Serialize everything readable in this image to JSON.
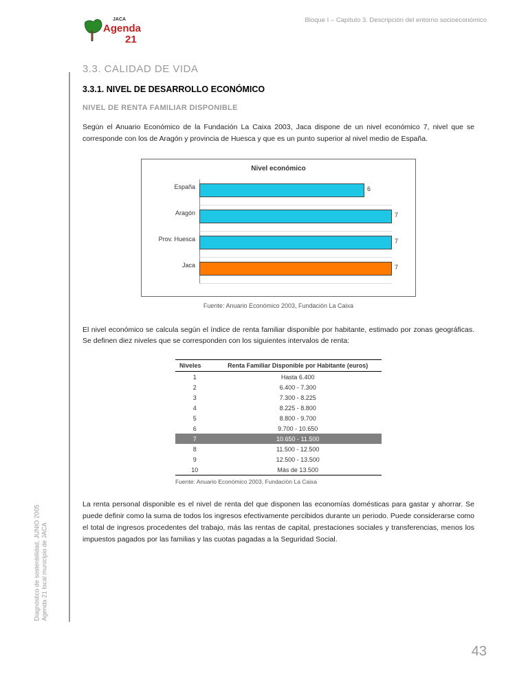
{
  "header": {
    "chapter": "Bloque I – Capítulo 3. Descripción del entorno socioeconómico"
  },
  "logo": {
    "top_text": "JACA",
    "line1": "Agenda",
    "line2": "21",
    "leaf_color": "#2a8a2a",
    "red": "#c02020"
  },
  "side": {
    "line1": "Diagnóstico de sostenbilidad, JUNIO 2005",
    "line2": "Agenda 21 local municipio de JACA"
  },
  "headings": {
    "sec": "3.3. CALIDAD DE VIDA",
    "sub": "3.3.1. NIVEL DE DESARROLLO ECONÓMICO",
    "sub2": "NIVEL DE RENTA FAMILIAR DISPONIBLE"
  },
  "para1": "Según el Anuario Económico de la Fundación La Caixa 2003, Jaca dispone de un nivel económico 7, nivel que se corresponde con los de Aragón y provincia de Huesca y que es un punto superior al nivel medio de España.",
  "chart": {
    "title": "Nivel económico",
    "max": 7,
    "categories": [
      "España",
      "Aragón",
      "Prov. Huesca",
      "Jaca"
    ],
    "values": [
      6,
      7,
      7,
      7
    ],
    "bar_colors": [
      "#1ec7e6",
      "#1ec7e6",
      "#1ec7e6",
      "#ff7a00"
    ],
    "border_color": "#666666",
    "source": "Fuente: Anuario Económico 2003, Fundación La Caixa"
  },
  "para2": "El nivel económico se calcula según el índice de renta familiar disponible por habitante, estimado por zonas geográficas. Se definen diez niveles que se corresponden con los siguientes intervalos de renta:",
  "table": {
    "col1": "Niveles",
    "col2": "Renta Familiar Disponible por Habitante (euros)",
    "rows": [
      {
        "lv": "1",
        "val": "Hasta 6.400",
        "hl": false
      },
      {
        "lv": "2",
        "val": "6.400 - 7.300",
        "hl": false
      },
      {
        "lv": "3",
        "val": "7.300 - 8.225",
        "hl": false
      },
      {
        "lv": "4",
        "val": "8.225 - 8.800",
        "hl": false
      },
      {
        "lv": "5",
        "val": "8.800 - 9.700",
        "hl": false
      },
      {
        "lv": "6",
        "val": "9.700 - 10.650",
        "hl": false
      },
      {
        "lv": "7",
        "val": "10.650 - 11.500",
        "hl": true
      },
      {
        "lv": "8",
        "val": "11.500 - 12.500",
        "hl": false
      },
      {
        "lv": "9",
        "val": "12.500 - 13.500",
        "hl": false
      },
      {
        "lv": "10",
        "val": "Más de 13.500",
        "hl": false
      }
    ],
    "source": "Fuente: Anuario Económico 2003, Fundación La Caixa"
  },
  "para3": "La renta personal disponible es el nivel de renta del que disponen las economías domésticas para gastar y ahorrar. Se puede definir como la suma de todos los ingresos efectivamente percibidos durante un periodo. Puede considerarse como el total de ingresos procedentes del trabajo, más las rentas de capital, prestaciones sociales y transferencias, menos los impuestos pagados por las familias y las cuotas pagadas a la Seguridad Social.",
  "page_number": "43"
}
